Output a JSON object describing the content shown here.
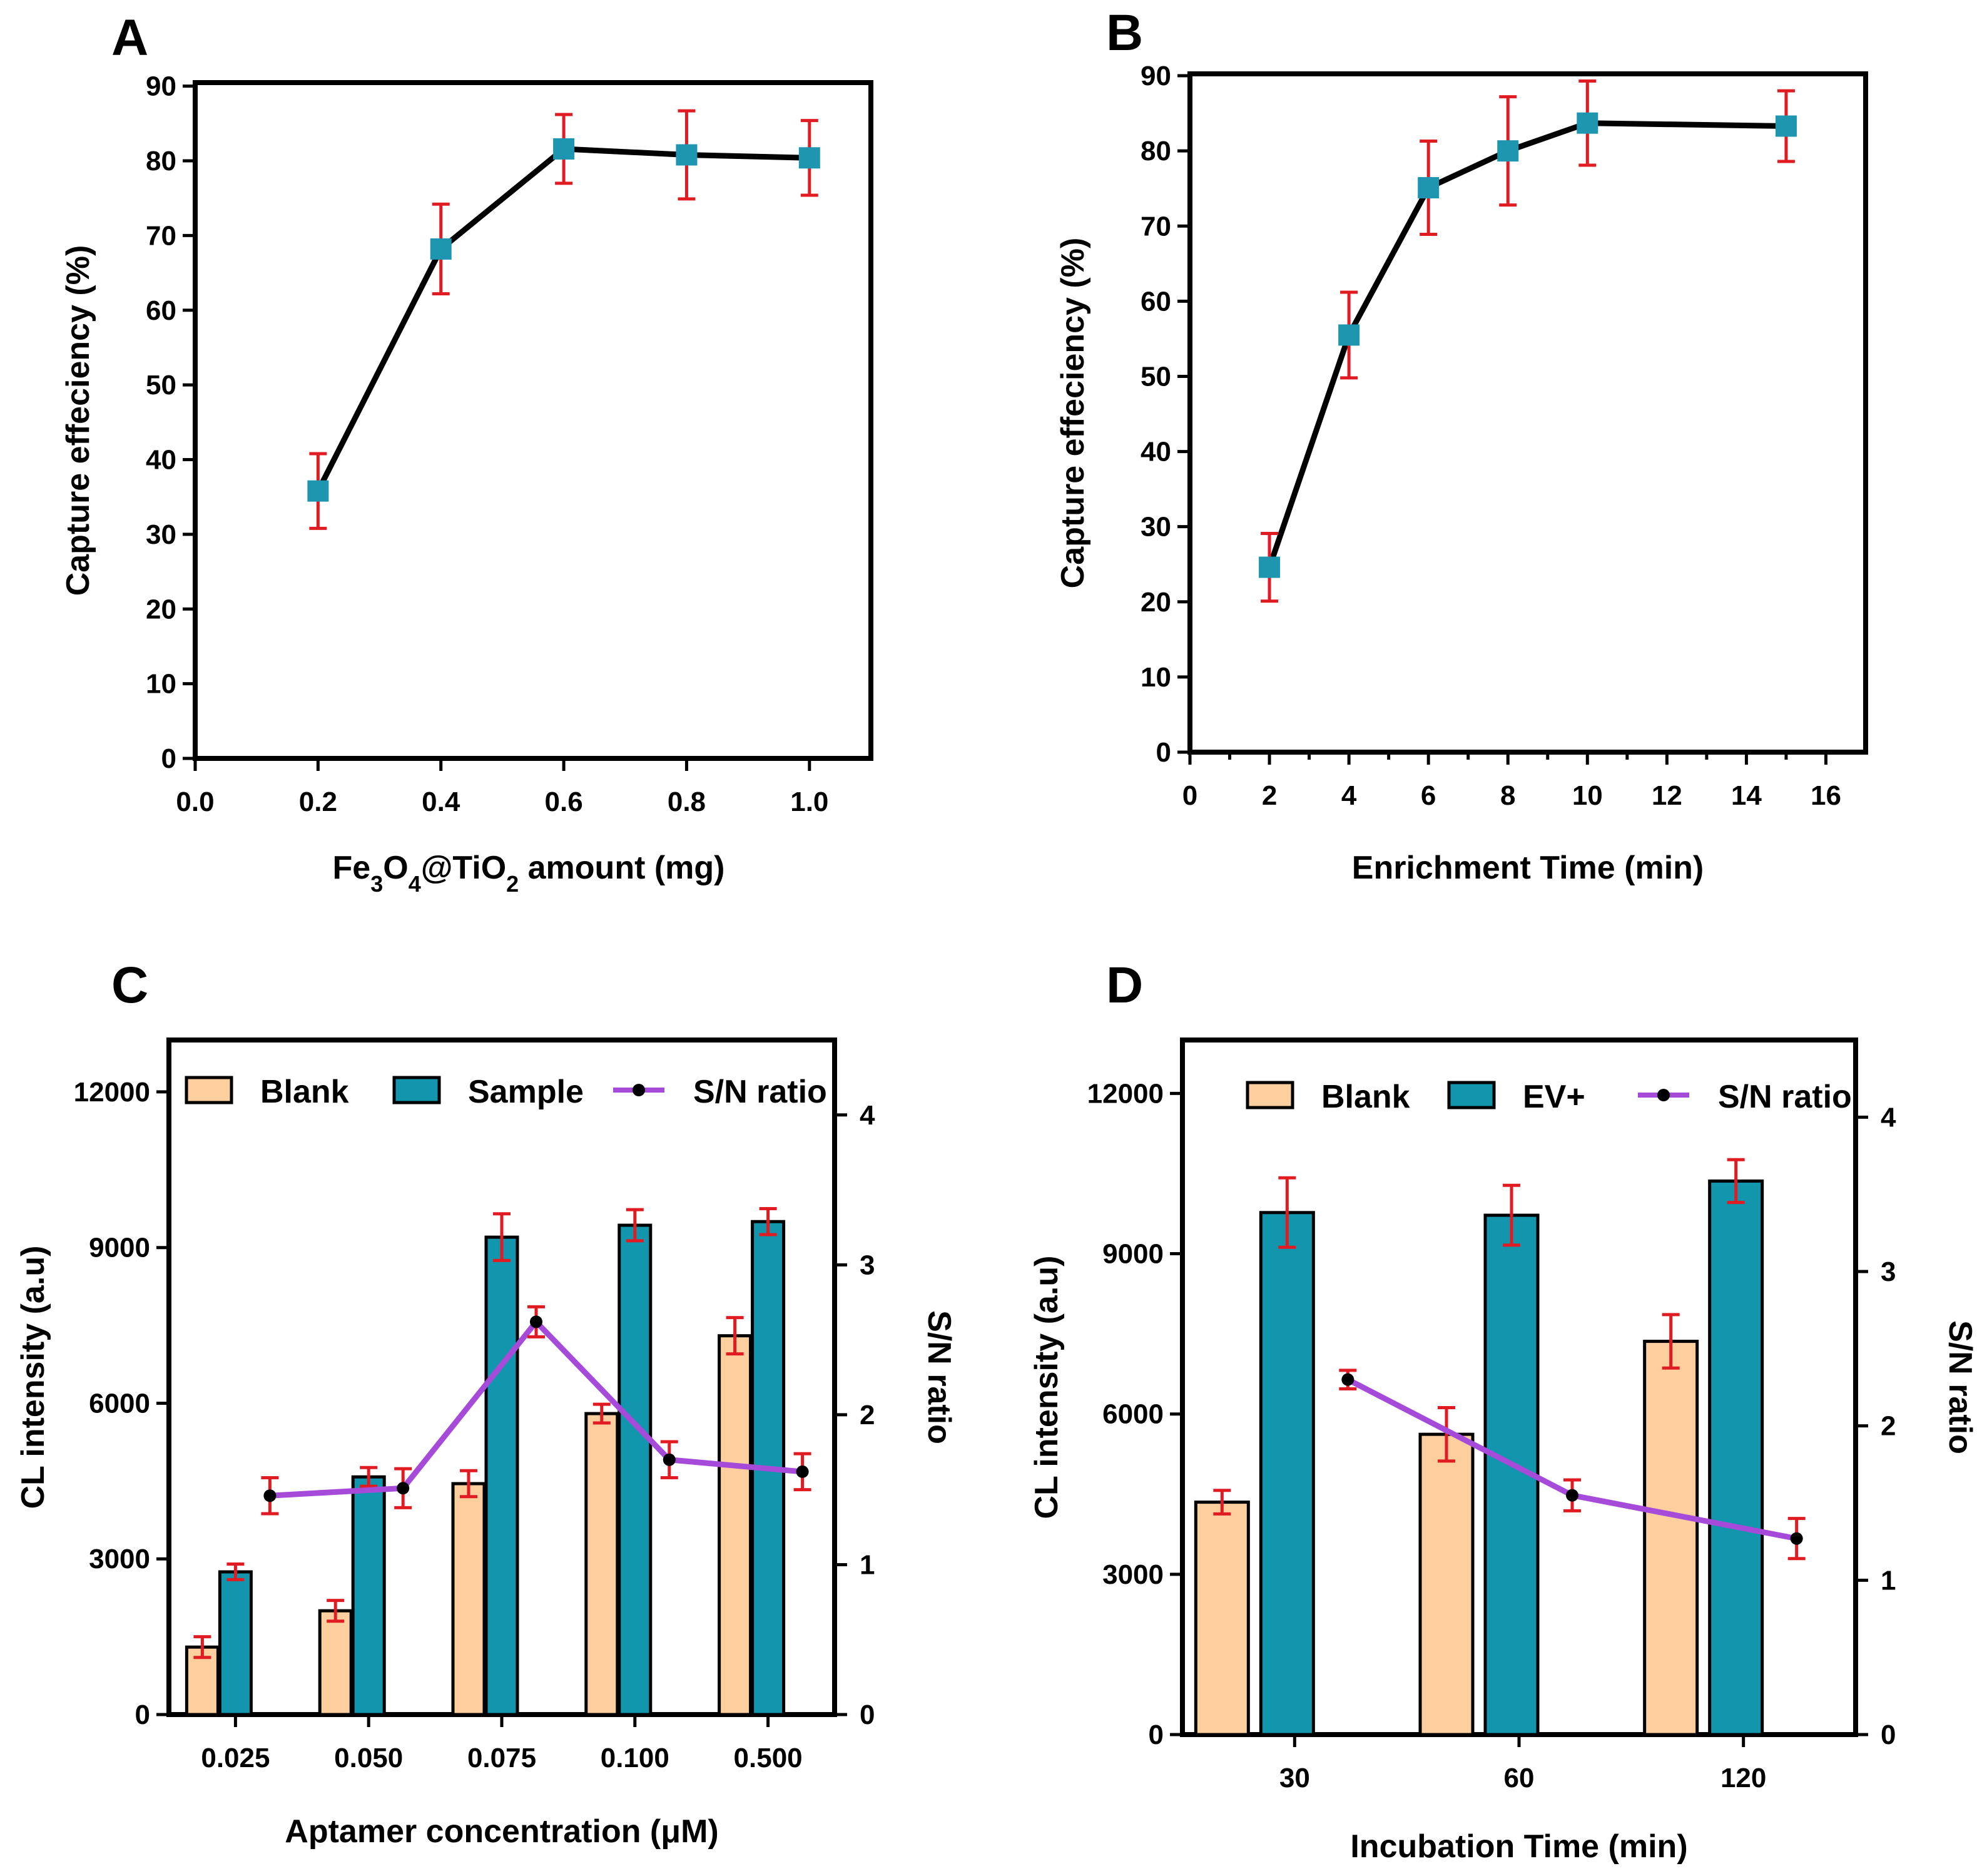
{
  "chart_data": [
    {
      "panel": "A",
      "type": "line",
      "xlabel": "amount (mg)",
      "xlabel_formula": {
        "fe": "Fe",
        "s3": "3",
        "o": "O",
        "s4": "4",
        "ti": "@TiO",
        "s2": "2"
      },
      "ylabel": "Capture effeciency (%)",
      "xlim": [
        0.0,
        1.1
      ],
      "ylim": [
        0,
        95
      ],
      "xticks": [
        "0.0",
        "0.2",
        "0.4",
        "0.6",
        "0.8",
        "1.0"
      ],
      "xtick_values": [
        0.0,
        0.2,
        0.4,
        0.6,
        0.8,
        1.0
      ],
      "yticks": [
        "0",
        "10",
        "20",
        "30",
        "40",
        "50",
        "60",
        "70",
        "80",
        "90"
      ],
      "ytick_values": [
        0,
        10,
        20,
        30,
        40,
        50,
        60,
        70,
        80,
        90
      ],
      "x": [
        0.2,
        0.4,
        0.6,
        0.8,
        1.0
      ],
      "y": [
        35.8,
        68.2,
        81.6,
        80.8,
        80.4
      ],
      "err": [
        5.0,
        6.0,
        4.6,
        5.9,
        5.0
      ]
    },
    {
      "panel": "B",
      "type": "line",
      "xlabel": "Enrichment Time (min)",
      "ylabel": "Capture effeciency (%)",
      "xlim": [
        0,
        17
      ],
      "ylim": [
        0,
        95
      ],
      "xticks": [
        "0",
        "2",
        "4",
        "6",
        "8",
        "10",
        "12",
        "14",
        "16"
      ],
      "xtick_values": [
        0,
        2,
        4,
        6,
        8,
        10,
        12,
        14,
        16
      ],
      "yticks": [
        "0",
        "10",
        "20",
        "30",
        "40",
        "50",
        "60",
        "70",
        "80",
        "90"
      ],
      "ytick_values": [
        0,
        10,
        20,
        30,
        40,
        50,
        60,
        70,
        80,
        90
      ],
      "x": [
        2,
        4,
        6,
        8,
        10,
        15
      ],
      "y": [
        24.6,
        55.5,
        75.1,
        80.0,
        83.7,
        83.3
      ],
      "err": [
        4.5,
        5.7,
        6.2,
        7.2,
        5.6,
        4.7
      ]
    },
    {
      "panel": "C",
      "type": "bar",
      "xlabel": "Aptamer concentration (μM)",
      "ylabel": "CL intensity (a.u)",
      "y2label": "S/N ratio",
      "categories": [
        "0.025",
        "0.050",
        "0.075",
        "0.100",
        "0.500"
      ],
      "ylim": [
        0,
        13000
      ],
      "yticks": [
        "0",
        "3000",
        "6000",
        "9000",
        "12000"
      ],
      "ytick_values": [
        0,
        3000,
        6000,
        9000,
        12000
      ],
      "y2lim": [
        0,
        4.5
      ],
      "y2ticks": [
        "0",
        "1",
        "2",
        "3",
        "4"
      ],
      "y2tick_values": [
        0,
        1,
        2,
        3,
        4
      ],
      "series": [
        {
          "name": "Blank",
          "color": "#fdcf9e",
          "values": [
            1300,
            2000,
            4450,
            5800,
            7300
          ],
          "err": [
            200,
            200,
            250,
            180,
            350
          ]
        },
        {
          "name": "Sample",
          "color": "#1196ae",
          "values": [
            2750,
            4580,
            9200,
            9430,
            9500
          ],
          "err": [
            150,
            180,
            450,
            300,
            250
          ]
        }
      ],
      "line_series": {
        "name": "S/N ratio",
        "color": "#a64bd9",
        "values": [
          1.46,
          1.51,
          2.62,
          1.7,
          1.62
        ],
        "err": [
          0.12,
          0.13,
          0.1,
          0.12,
          0.12
        ]
      }
    },
    {
      "panel": "D",
      "type": "bar",
      "xlabel": "Incubation Time (min)",
      "ylabel": "CL intensity (a.u)",
      "y2label": "S/N ratio",
      "categories": [
        "30",
        "60",
        "120"
      ],
      "ylim": [
        0,
        13000
      ],
      "yticks": [
        "0",
        "3000",
        "6000",
        "9000",
        "12000"
      ],
      "ytick_values": [
        0,
        3000,
        6000,
        9000,
        12000
      ],
      "y2lim": [
        0,
        4.5
      ],
      "y2ticks": [
        "0",
        "1",
        "2",
        "3",
        "4"
      ],
      "y2tick_values": [
        0,
        1,
        2,
        3,
        4
      ],
      "series": [
        {
          "name": "Blank",
          "color": "#fdcf9e",
          "values": [
            4350,
            5620,
            7360
          ],
          "err": [
            220,
            500,
            500
          ]
        },
        {
          "name": "EV+",
          "color": "#1196ae",
          "values": [
            9770,
            9720,
            10360
          ],
          "err": [
            650,
            560,
            400
          ]
        }
      ],
      "line_series": {
        "name": "S/N ratio",
        "color": "#a64bd9",
        "values": [
          2.3,
          1.55,
          1.27
        ],
        "err": [
          0.06,
          0.1,
          0.13
        ]
      }
    }
  ]
}
